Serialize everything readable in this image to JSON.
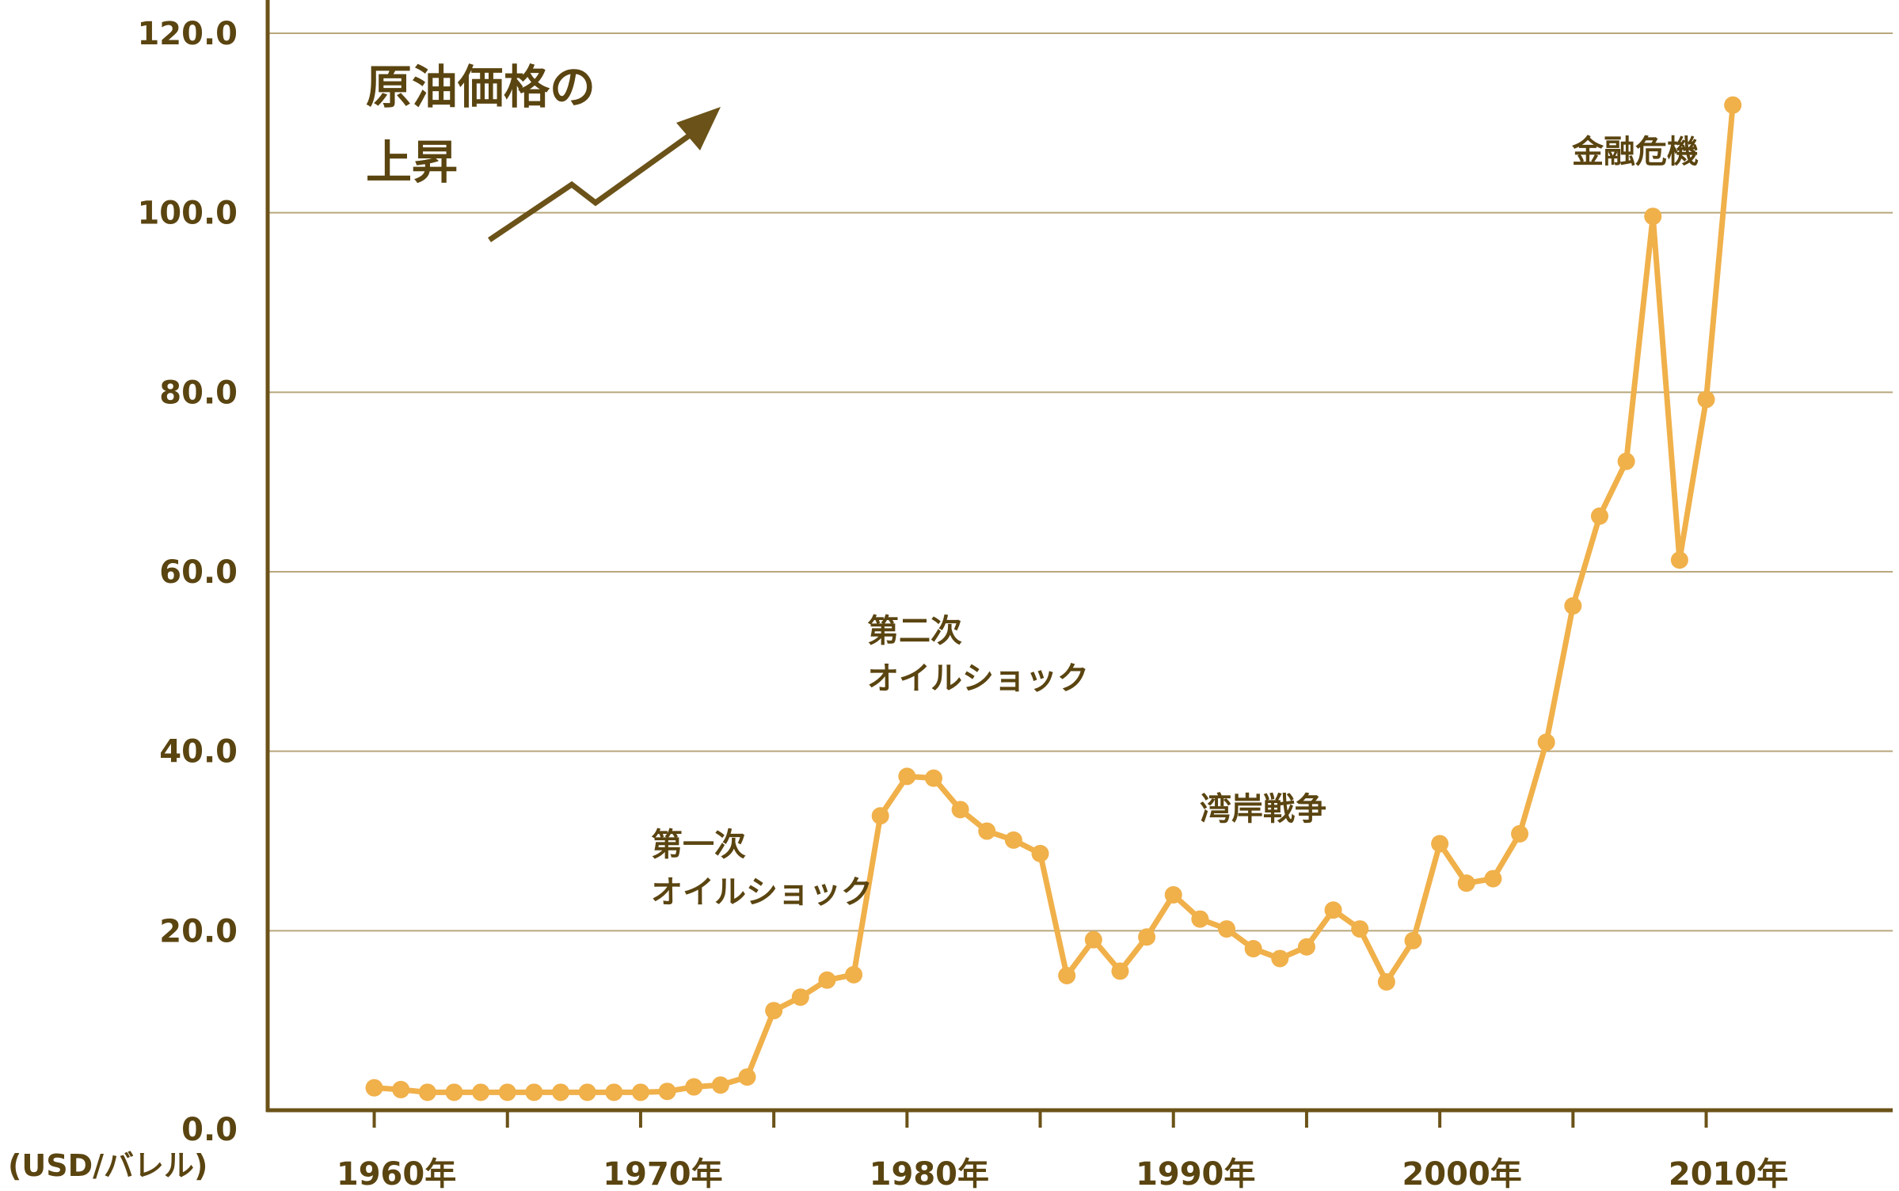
{
  "chart_data": {
    "type": "line",
    "title_lines": [
      "原油価格の",
      "上昇"
    ],
    "unit_label": "(USD/バレル)",
    "colors": {
      "line": "#f0b04a",
      "axis": "#6b5218",
      "grid": "#b9a77c",
      "text": "#5a4410"
    },
    "ylim": [
      0,
      120
    ],
    "y_ticks": [
      0,
      20,
      40,
      60,
      80,
      100,
      120
    ],
    "y_tick_labels": [
      "0.0",
      "20.0",
      "40.0",
      "60.0",
      "80.0",
      "100.0",
      "120.0"
    ],
    "xlim": [
      1956,
      2017
    ],
    "x_tick_labels": [
      {
        "year": 1960,
        "label": "1960年"
      },
      {
        "year": 1970,
        "label": "1970年"
      },
      {
        "year": 1980,
        "label": "1980年"
      },
      {
        "year": 1990,
        "label": "1990年"
      },
      {
        "year": 2000,
        "label": "2000年"
      },
      {
        "year": 2010,
        "label": "2010年"
      }
    ],
    "x_minor_ticks": [
      1960,
      1965,
      1970,
      1975,
      1980,
      1985,
      1990,
      1995,
      2000,
      2005,
      2010
    ],
    "grid": true,
    "series": [
      {
        "x": [
          1960,
          1961,
          1962,
          1963,
          1964,
          1965,
          1966,
          1967,
          1968,
          1969,
          1970,
          1971,
          1972,
          1973,
          1974,
          1975,
          1976,
          1977,
          1978,
          1979,
          1980,
          1981,
          1982,
          1983,
          1984,
          1985,
          1986,
          1987,
          1988,
          1989,
          1990,
          1991,
          1992,
          1993,
          1994,
          1995,
          1996,
          1997,
          1998,
          1999,
          2000,
          2001,
          2002,
          2003,
          2004,
          2005,
          2006,
          2007,
          2008,
          2009,
          2010,
          2011
        ],
        "y": [
          2.5,
          2.3,
          2.0,
          2.0,
          2.0,
          2.0,
          2.0,
          2.0,
          2.0,
          2.0,
          2.0,
          2.1,
          2.6,
          2.8,
          3.7,
          11.1,
          12.6,
          14.5,
          15.1,
          32.8,
          37.2,
          37.0,
          33.5,
          31.1,
          30.1,
          28.6,
          15.0,
          19.0,
          15.5,
          19.3,
          24.0,
          21.3,
          20.2,
          18.0,
          16.9,
          18.2,
          22.3,
          20.2,
          14.3,
          18.9,
          29.7,
          25.3,
          25.8,
          30.8,
          41.0,
          56.2,
          66.2,
          72.3,
          99.6,
          61.3,
          79.2,
          112.0
        ]
      }
    ],
    "annotations": [
      {
        "lines": [
          "第一次",
          "オイルショック"
        ],
        "year": 1974
      },
      {
        "lines": [
          "第二次",
          "オイルショック"
        ],
        "year": 1980
      },
      {
        "lines": [
          "湾岸戦争"
        ],
        "year": 1990
      },
      {
        "lines": [
          "金融危機"
        ],
        "year": 2008
      }
    ]
  }
}
